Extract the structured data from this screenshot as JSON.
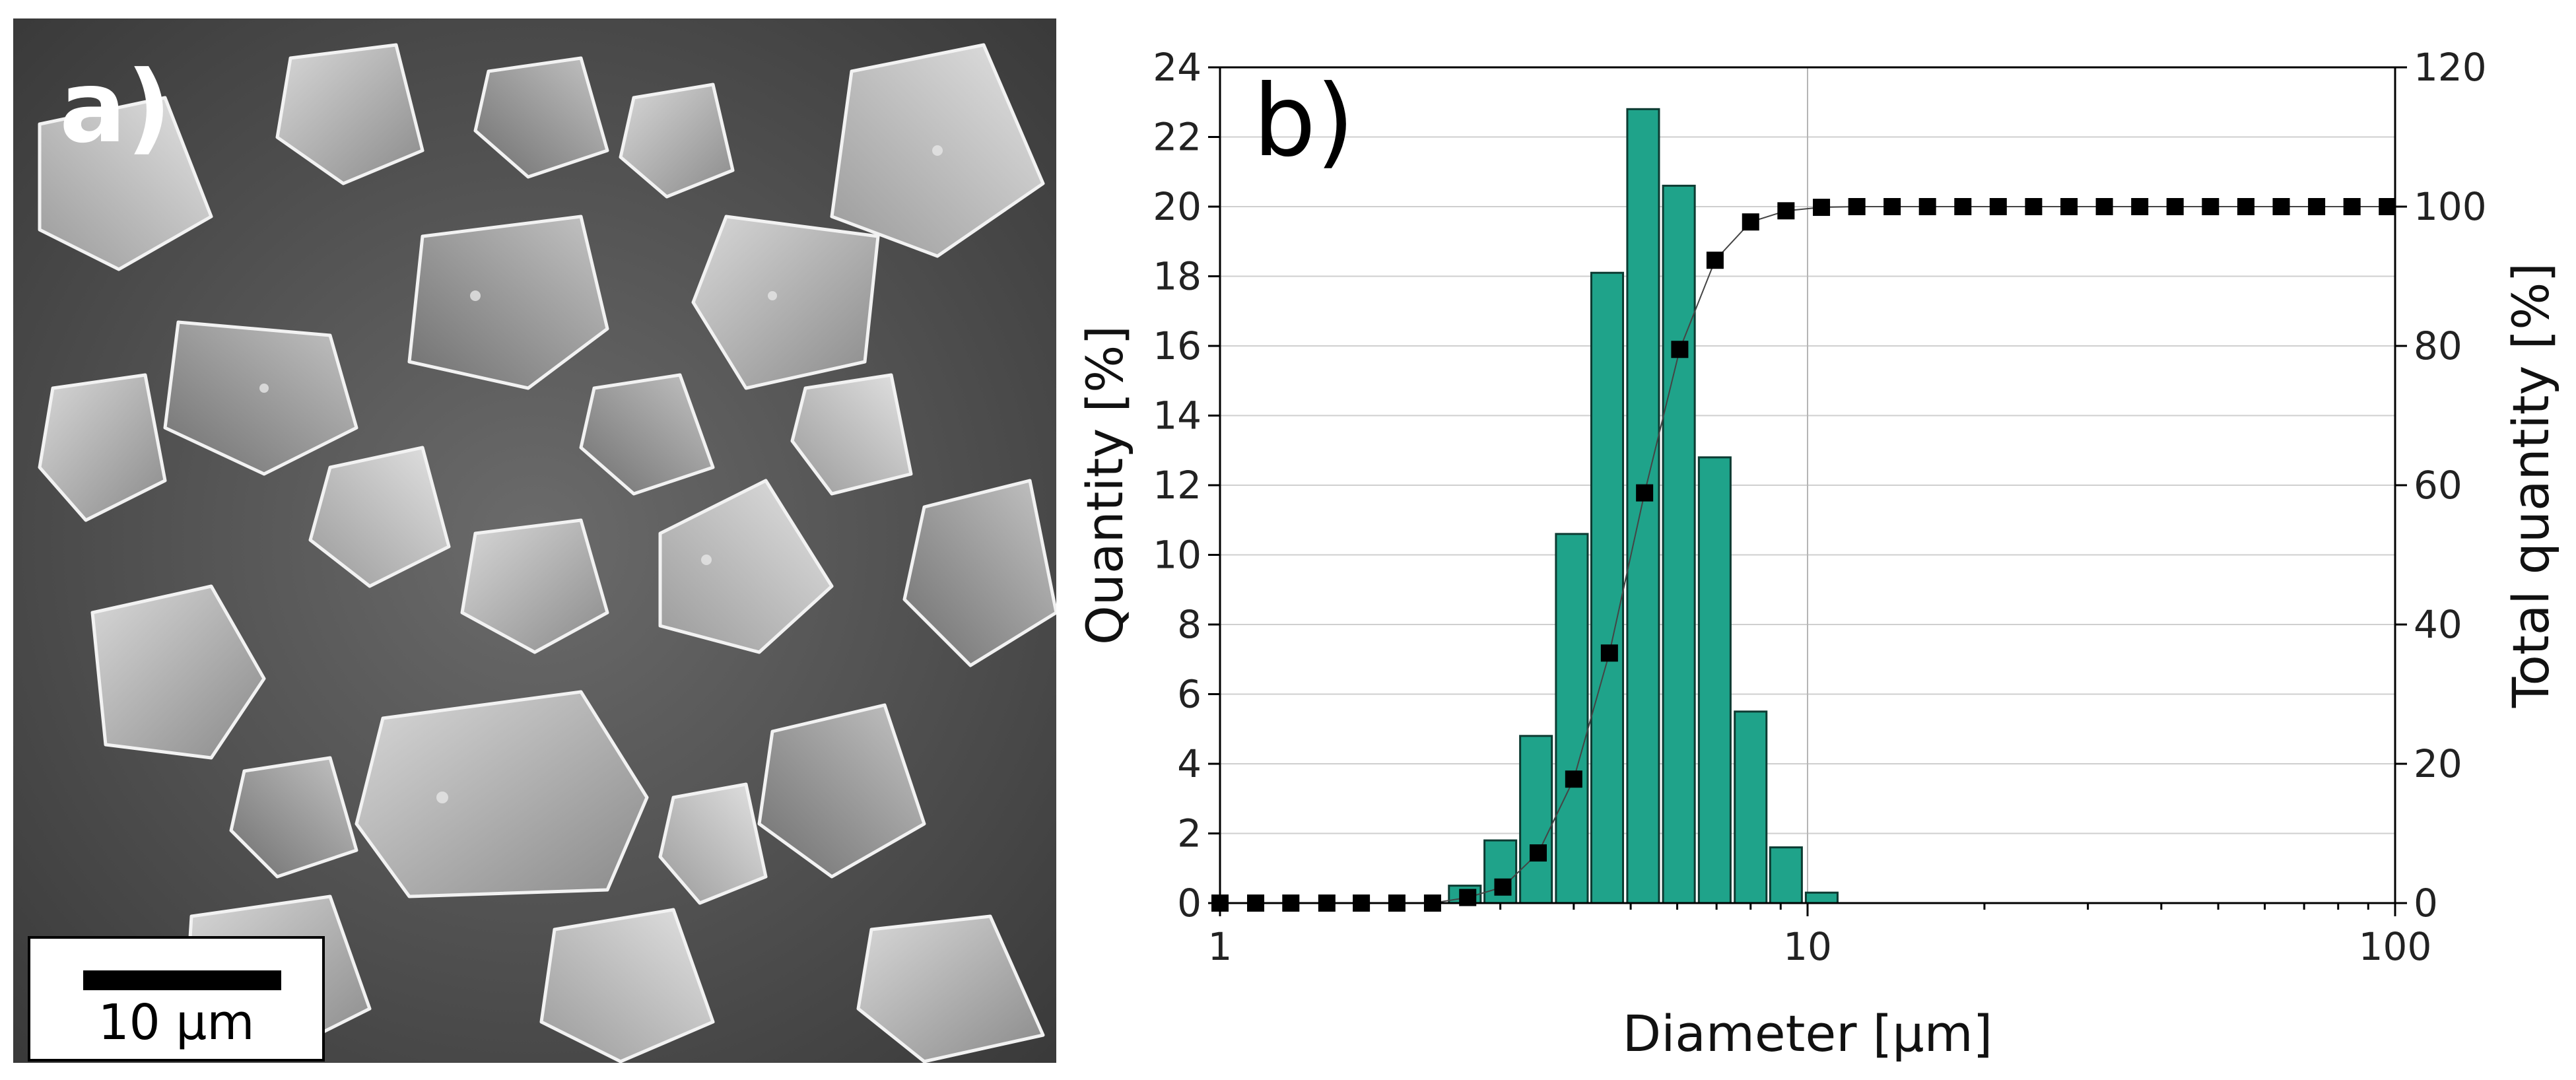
{
  "panel_a": {
    "label": "a)",
    "scale_bar_text": "10 µm"
  },
  "chart_data": {
    "type": "bar",
    "panel_label": "b)",
    "xlabel": "Diameter [µm]",
    "ylabel": "Quantity [%]",
    "y2label": "Total quantity [%]",
    "xscale": "log",
    "xlim": [
      1,
      100
    ],
    "ylim": [
      0,
      24
    ],
    "y2lim": [
      0,
      120
    ],
    "x_ticks": [
      1,
      10,
      100
    ],
    "x_tick_labels": [
      "1",
      "10",
      "100"
    ],
    "y_ticks": [
      0,
      2,
      4,
      6,
      8,
      10,
      12,
      14,
      16,
      18,
      20,
      22,
      24
    ],
    "y2_ticks": [
      0,
      20,
      40,
      60,
      80,
      100,
      120
    ],
    "grid": true,
    "colors": {
      "bar_fill": "#1fa38a",
      "bar_stroke": "#0d3b32",
      "cumulative": "#000000",
      "grid": "#cfcfcf"
    },
    "series": [
      {
        "name": "Quantity",
        "type": "bar",
        "axis": "left",
        "x": [
          2.61,
          3.0,
          3.45,
          3.97,
          4.56,
          5.25,
          6.04,
          6.95,
          8.0,
          9.19,
          10.57
        ],
        "values": [
          0.5,
          1.8,
          4.8,
          10.6,
          18.1,
          22.8,
          20.6,
          12.8,
          5.5,
          1.6,
          0.3
        ]
      },
      {
        "name": "Total quantity",
        "type": "line-scatter",
        "axis": "right",
        "x": [
          1.0,
          1.15,
          1.32,
          1.52,
          1.74,
          2.0,
          2.3,
          2.64,
          3.03,
          3.48,
          4.0,
          4.6,
          5.28,
          6.06,
          6.96,
          8.0,
          9.19,
          10.56,
          12.13,
          13.93,
          16.0,
          18.38,
          21.11,
          24.25,
          27.86,
          32.0,
          36.76,
          42.22,
          48.5,
          55.72,
          64.0,
          73.52,
          84.45,
          97.0
        ],
        "values": [
          0,
          0,
          0,
          0,
          0,
          0,
          0,
          0.8,
          2.3,
          7.2,
          17.8,
          35.9,
          58.9,
          79.5,
          92.3,
          97.8,
          99.4,
          99.9,
          100,
          100,
          100,
          100,
          100,
          100,
          100,
          100,
          100,
          100,
          100,
          100,
          100,
          100,
          100,
          100
        ]
      }
    ]
  }
}
